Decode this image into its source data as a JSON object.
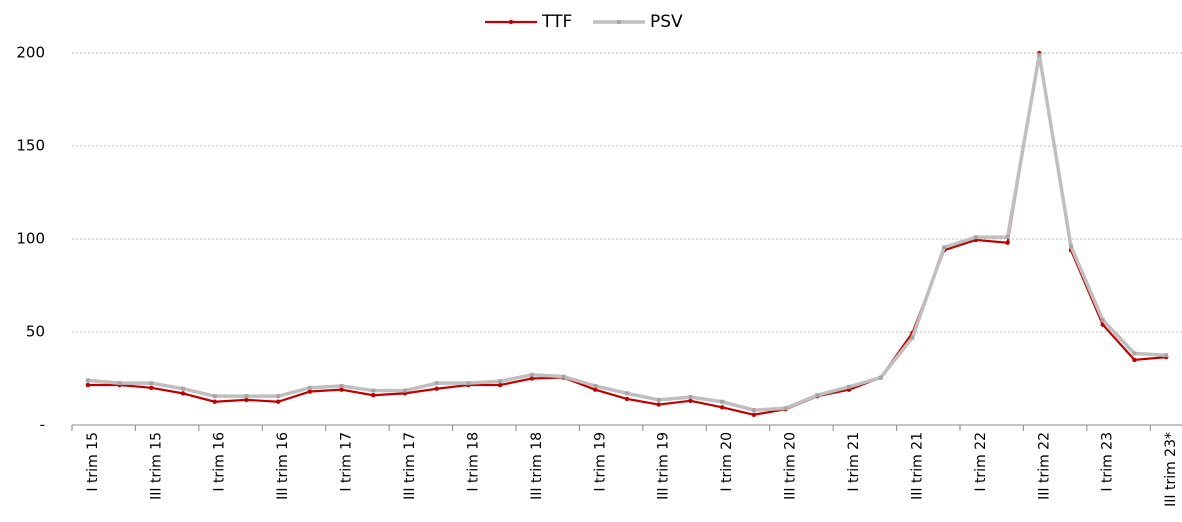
{
  "chart_data": {
    "type": "line",
    "categories": [
      "I trim 15",
      null,
      "III trim 15",
      null,
      "I trim 16",
      null,
      "III trim 16",
      null,
      "I trim 17",
      null,
      "III trim 17",
      null,
      "I trim 18",
      null,
      "III trim 18",
      null,
      "I trim 19",
      null,
      "III trim 19",
      null,
      "I trim 20",
      null,
      "III trim 20",
      null,
      "I trim 21",
      null,
      "III trim 21",
      null,
      "I trim 22",
      null,
      "III trim 22",
      null,
      "I trim 23",
      null,
      "III trim 23*"
    ],
    "series": [
      {
        "name": "TTF",
        "color": "#c00000",
        "values": [
          21.5,
          21.5,
          20,
          17,
          12.5,
          13.5,
          12.5,
          18,
          19,
          16,
          17,
          19.5,
          21.5,
          21.5,
          25,
          25.5,
          19,
          14,
          11,
          13,
          9.5,
          5.5,
          8.5,
          15.5,
          19,
          25.5,
          49.5,
          94,
          99.5,
          98,
          200,
          94,
          54,
          35,
          36.5
        ]
      },
      {
        "name": "PSV",
        "color": "#bfbfbf",
        "values": [
          24,
          22.5,
          22.5,
          19.5,
          15.5,
          15.5,
          15.5,
          20,
          21,
          18.5,
          18.5,
          22.5,
          22.5,
          23.5,
          27,
          26,
          21,
          17,
          13.5,
          15,
          12.5,
          8,
          9,
          16,
          20.5,
          25.5,
          47,
          95.5,
          101,
          101,
          199,
          96,
          56.5,
          38.5,
          37.5
        ]
      }
    ],
    "ylim": [
      0,
      210
    ],
    "yticks": [
      {
        "value": 0,
        "label": "-"
      },
      50,
      100,
      150,
      200
    ],
    "grid": true,
    "legend": "top"
  }
}
